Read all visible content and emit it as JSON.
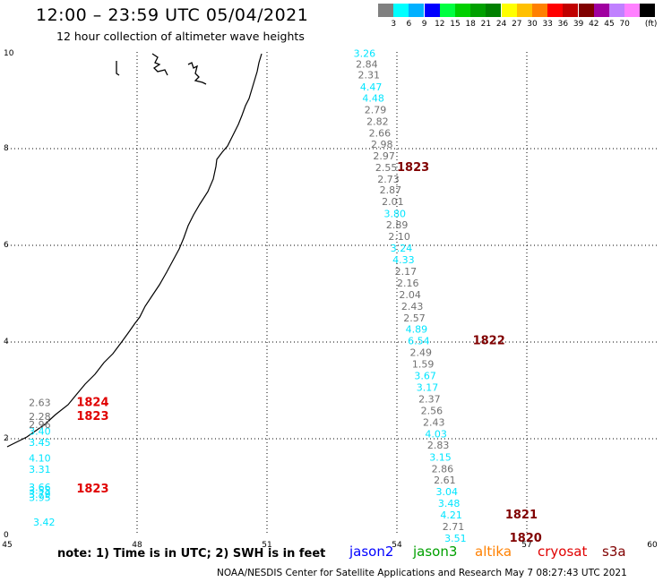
{
  "title": "12:00 – 23:59 UTC 05/04/2021",
  "subtitle": "12 hour collection of altimeter wave heights",
  "legend": {
    "unit": "(ft)",
    "items": [
      {
        "color": "#808080",
        "label": ""
      },
      {
        "color": "#00ffff",
        "label": "3"
      },
      {
        "color": "#00b0ff",
        "label": "6"
      },
      {
        "color": "#0000ff",
        "label": "9"
      },
      {
        "color": "#00ff40",
        "label": "12"
      },
      {
        "color": "#00d000",
        "label": "15"
      },
      {
        "color": "#00a000",
        "label": "18"
      },
      {
        "color": "#008000",
        "label": "21"
      },
      {
        "color": "#ffff00",
        "label": "24"
      },
      {
        "color": "#ffc000",
        "label": "27"
      },
      {
        "color": "#ff8000",
        "label": "30"
      },
      {
        "color": "#ff0000",
        "label": "33"
      },
      {
        "color": "#c00000",
        "label": "36"
      },
      {
        "color": "#800000",
        "label": "39"
      },
      {
        "color": "#a000a0",
        "label": "42"
      },
      {
        "color": "#c080ff",
        "label": "45"
      },
      {
        "color": "#ff80ff",
        "label": "70"
      },
      {
        "color": "#000000",
        "label": ""
      }
    ]
  },
  "axes": {
    "x_ticks": [
      {
        "v": 45,
        "label": "45"
      },
      {
        "v": 48,
        "label": "48"
      },
      {
        "v": 51,
        "label": "51"
      },
      {
        "v": 54,
        "label": "54"
      },
      {
        "v": 57,
        "label": "57"
      },
      {
        "v": 60,
        "label": "60"
      }
    ],
    "y_ticks": [
      {
        "v": 0,
        "label": "0"
      },
      {
        "v": 2,
        "label": "2"
      },
      {
        "v": 4,
        "label": "4"
      },
      {
        "v": 6,
        "label": "6"
      },
      {
        "v": 8,
        "label": "8"
      },
      {
        "v": 10,
        "label": "10"
      }
    ]
  },
  "track_labels": [
    {
      "lon": 45.6,
      "lat": 0.2,
      "text": "3.42",
      "color": "#00e5ff"
    },
    {
      "lon": 45.5,
      "lat": 0.71,
      "text": "3.95",
      "color": "#00e5ff"
    },
    {
      "lon": 45.5,
      "lat": 0.78,
      "text": "3.79",
      "color": "#00e5ff"
    },
    {
      "lon": 45.5,
      "lat": 0.86,
      "text": "3.55",
      "color": "#00e5ff"
    },
    {
      "lon": 45.5,
      "lat": 0.93,
      "text": "3.66",
      "color": "#00e5ff"
    },
    {
      "lon": 45.5,
      "lat": 1.3,
      "text": "3.31",
      "color": "#00e5ff"
    },
    {
      "lon": 45.5,
      "lat": 1.53,
      "text": "4.10",
      "color": "#00e5ff"
    },
    {
      "lon": 45.5,
      "lat": 1.85,
      "text": "3.45",
      "color": "#00e5ff"
    },
    {
      "lon": 45.5,
      "lat": 2.08,
      "text": "3.40",
      "color": "#00e5ff"
    },
    {
      "lon": 45.5,
      "lat": 2.22,
      "text": "2.96",
      "color": "#707070"
    },
    {
      "lon": 45.5,
      "lat": 2.39,
      "text": "2.28",
      "color": "#707070"
    },
    {
      "lon": 45.5,
      "lat": 2.68,
      "text": "2.63",
      "color": "#707070"
    },
    {
      "lon": 53.0,
      "lat": 9.9,
      "text": "3.26",
      "color": "#00e5ff"
    },
    {
      "lon": 53.05,
      "lat": 9.68,
      "text": "2.84",
      "color": "#707070"
    },
    {
      "lon": 53.1,
      "lat": 9.45,
      "text": "2.31",
      "color": "#707070"
    },
    {
      "lon": 53.15,
      "lat": 9.2,
      "text": "4.47",
      "color": "#00e5ff"
    },
    {
      "lon": 53.2,
      "lat": 8.97,
      "text": "4.48",
      "color": "#00e5ff"
    },
    {
      "lon": 53.25,
      "lat": 8.73,
      "text": "2.79",
      "color": "#707070"
    },
    {
      "lon": 53.3,
      "lat": 8.49,
      "text": "2.82",
      "color": "#707070"
    },
    {
      "lon": 53.35,
      "lat": 8.25,
      "text": "2.66",
      "color": "#707070"
    },
    {
      "lon": 53.4,
      "lat": 8.02,
      "text": "2.98",
      "color": "#707070"
    },
    {
      "lon": 53.45,
      "lat": 7.78,
      "text": "2.97",
      "color": "#707070"
    },
    {
      "lon": 53.5,
      "lat": 7.54,
      "text": "2.55",
      "color": "#707070"
    },
    {
      "lon": 53.55,
      "lat": 7.3,
      "text": "2.73",
      "color": "#707070"
    },
    {
      "lon": 53.6,
      "lat": 7.07,
      "text": "2.87",
      "color": "#707070"
    },
    {
      "lon": 53.65,
      "lat": 6.83,
      "text": "2.01",
      "color": "#707070"
    },
    {
      "lon": 53.7,
      "lat": 6.58,
      "text": "3.80",
      "color": "#00e5ff"
    },
    {
      "lon": 53.75,
      "lat": 6.35,
      "text": "2.89",
      "color": "#707070"
    },
    {
      "lon": 53.8,
      "lat": 6.11,
      "text": "2.10",
      "color": "#707070"
    },
    {
      "lon": 53.85,
      "lat": 5.87,
      "text": "3.24",
      "color": "#00e5ff"
    },
    {
      "lon": 53.9,
      "lat": 5.63,
      "text": "4.33",
      "color": "#00e5ff"
    },
    {
      "lon": 53.95,
      "lat": 5.39,
      "text": "2.17",
      "color": "#707070"
    },
    {
      "lon": 54.0,
      "lat": 5.15,
      "text": "2.16",
      "color": "#707070"
    },
    {
      "lon": 54.05,
      "lat": 4.91,
      "text": "2.04",
      "color": "#707070"
    },
    {
      "lon": 54.1,
      "lat": 4.67,
      "text": "2.43",
      "color": "#707070"
    },
    {
      "lon": 54.15,
      "lat": 4.43,
      "text": "2.57",
      "color": "#707070"
    },
    {
      "lon": 54.2,
      "lat": 4.19,
      "text": "4.89",
      "color": "#00e5ff"
    },
    {
      "lon": 54.25,
      "lat": 3.95,
      "text": "6.54",
      "color": "#00e5ff"
    },
    {
      "lon": 54.3,
      "lat": 3.71,
      "text": "2.49",
      "color": "#707070"
    },
    {
      "lon": 54.35,
      "lat": 3.47,
      "text": "1.59",
      "color": "#707070"
    },
    {
      "lon": 54.4,
      "lat": 3.23,
      "text": "3.67",
      "color": "#00e5ff"
    },
    {
      "lon": 54.45,
      "lat": 2.99,
      "text": "3.17",
      "color": "#00e5ff"
    },
    {
      "lon": 54.5,
      "lat": 2.75,
      "text": "2.37",
      "color": "#707070"
    },
    {
      "lon": 54.55,
      "lat": 2.51,
      "text": "2.56",
      "color": "#707070"
    },
    {
      "lon": 54.6,
      "lat": 2.27,
      "text": "2.43",
      "color": "#707070"
    },
    {
      "lon": 54.65,
      "lat": 2.03,
      "text": "4.03",
      "color": "#00e5ff"
    },
    {
      "lon": 54.7,
      "lat": 1.8,
      "text": "2.83",
      "color": "#707070"
    },
    {
      "lon": 54.75,
      "lat": 1.55,
      "text": "3.15",
      "color": "#00e5ff"
    },
    {
      "lon": 54.8,
      "lat": 1.31,
      "text": "2.86",
      "color": "#707070"
    },
    {
      "lon": 54.85,
      "lat": 1.07,
      "text": "2.61",
      "color": "#707070"
    },
    {
      "lon": 54.9,
      "lat": 0.83,
      "text": "3.04",
      "color": "#00e5ff"
    },
    {
      "lon": 54.95,
      "lat": 0.59,
      "text": "3.48",
      "color": "#00e5ff"
    },
    {
      "lon": 55.0,
      "lat": 0.35,
      "text": "4.21",
      "color": "#00e5ff"
    },
    {
      "lon": 55.05,
      "lat": 0.11,
      "text": "2.71",
      "color": "#707070"
    },
    {
      "lon": 55.1,
      "lat": -0.13,
      "text": "3.51",
      "color": "#00e5ff"
    }
  ],
  "time_labels": [
    {
      "lon": 46.6,
      "lat": 2.68,
      "text": "1824",
      "color": "#e00000"
    },
    {
      "lon": 46.6,
      "lat": 2.39,
      "text": "1823",
      "color": "#e00000"
    },
    {
      "lon": 46.6,
      "lat": 0.89,
      "text": "1823",
      "color": "#e00000"
    },
    {
      "lon": 54.0,
      "lat": 7.54,
      "text": "1823",
      "color": "#800000"
    },
    {
      "lon": 55.75,
      "lat": 3.95,
      "text": "1822",
      "color": "#800000"
    },
    {
      "lon": 56.5,
      "lat": 0.35,
      "text": "1821",
      "color": "#800000"
    },
    {
      "lon": 56.6,
      "lat": -0.13,
      "text": "1820",
      "color": "#800000"
    }
  ],
  "note": "note:  1) Time is in UTC;  2) SWH is in feet",
  "satellites": [
    {
      "name": "jason2",
      "color": "#0000ff"
    },
    {
      "name": "jason3",
      "color": "#00a000"
    },
    {
      "name": "altika",
      "color": "#ff8000"
    },
    {
      "name": "cryosat",
      "color": "#e00000"
    },
    {
      "name": "s3a",
      "color": "#800000"
    }
  ],
  "footer": "NOAA/NESDIS Center for Satellite Applications and Research    May  7 08:27:43 UTC 2021"
}
